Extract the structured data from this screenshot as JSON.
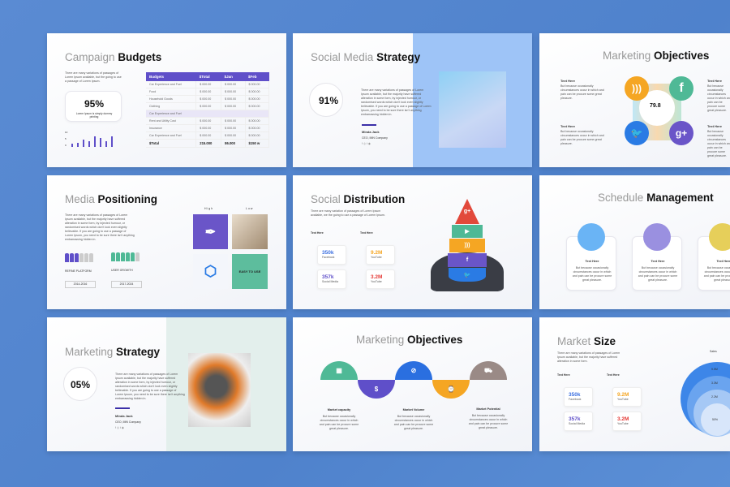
{
  "lorem": {
    "short": "There are many variations of passages of Lorem Ipsum available, but the majority have suffered alteration in some form.",
    "long": "There are many variations of passages of Lorem Ipsum available, but the majority have suffered alteration in some form, by injected humour, or randomised words which don't look even slightly believable. If you are going to use a passage of Lorem Ipsum, you need to be sure there isn't anything embarrassing hidden in.",
    "card": "But because occasionally circumstances occur in which and pain can be procure some great pleasure.",
    "budget": "There are many variations of passages of Lorem Ipsum available, but the going to use a passage of Lorem Ipsum.",
    "dist": "There are many variation of passages of Lorem Ipsum available, we the going to use a passage of Lorem Ipsum."
  },
  "slides": {
    "campaign_budgets": {
      "title_light": "Campaign",
      "title_bold": "Budgets",
      "percent": "95%",
      "percent_caption": "Lorem Ipsum is simply dummy printing",
      "chart_axis": [
        "10",
        "5",
        "0"
      ],
      "chart_values": [
        2,
        3,
        5,
        4,
        7,
        6,
        4,
        7
      ],
      "table": {
        "headers": [
          "Budgets",
          "$Total",
          "$Jan",
          "$Feb"
        ],
        "rows": [
          [
            "Car Experience and Fuel",
            "$ 000.00",
            "$ 000.00",
            "$ 000.00"
          ],
          [
            "Food",
            "$ 000.00",
            "$ 000.00",
            "$ 000.00"
          ],
          [
            "Household Goods",
            "$ 000.00",
            "$ 000.00",
            "$ 000.00"
          ],
          [
            "Clothing",
            "$ 000.00",
            "$ 000.00",
            "$ 000.00"
          ]
        ],
        "section": "Car Experience and Fuel",
        "rows2": [
          [
            "Rent and Utility Cost",
            "$ 000.00",
            "$ 000.00",
            "$ 000.00"
          ],
          [
            "Insurance",
            "$ 000.00",
            "$ 000.00",
            "$ 000.00"
          ],
          [
            "Car Experience and Fuel",
            "$ 000.00",
            "$ 000.00",
            "$ 000.00"
          ]
        ],
        "total": [
          "$Total",
          "215.000",
          "86.000",
          "$150 w"
        ]
      }
    },
    "social_media_strategy": {
      "title_light": "Social Media",
      "title_bold": "Strategy",
      "percent": "91%",
      "name": "Minda Jack",
      "role": "CEO, IMN Company"
    },
    "marketing_objectives_1": {
      "title_light": "Marketing",
      "title_bold": "Objectives",
      "center": "79.8",
      "item_title": "Text Here"
    },
    "media_positioning": {
      "title_light": "Media",
      "title_bold": "Positioning",
      "high": "High",
      "low": "Low",
      "label1": "REFINE PLATFORM",
      "label2": "USER GROWTH",
      "year1": "2014-2016",
      "year2": "2017-2024",
      "tile": "EASY TO USE",
      "people1_active": 3,
      "people2_active": 5,
      "people_total": 6
    },
    "social_distribution": {
      "title_light": "Social",
      "title_bold": "Distribution",
      "col_title": "Text Here",
      "stats": [
        {
          "value": "350k",
          "label": "Facebook",
          "color": "#3b6fe0"
        },
        {
          "value": "357k",
          "label": "Social Media",
          "color": "#5f4fc9"
        },
        {
          "value": "9.2M",
          "label": "YouTube",
          "color": "#f5a623"
        },
        {
          "value": "3.2M",
          "label": "YouTube",
          "color": "#e53935"
        }
      ]
    },
    "schedule_management": {
      "title_light": "Schedule",
      "title_bold": "Management",
      "card_title": "Text Here"
    },
    "marketing_strategy": {
      "title_light": "Marketing",
      "title_bold": "Strategy",
      "percent": "05%",
      "name": "Minda Jack",
      "role": "CEO, IMN Company"
    },
    "marketing_objectives_2": {
      "title_light": "Marketing",
      "title_bold": "Objectives",
      "items": [
        "Market capacity",
        "Market Volume",
        "Market Potential"
      ]
    },
    "market_size": {
      "title_light": "Market",
      "title_bold": "Size",
      "col_title": "Text Here",
      "sales_label": "Sales",
      "rings": [
        "9.5M",
        "3.3M",
        "2.2M",
        "50%"
      ],
      "stats": [
        {
          "value": "350k",
          "label": "Facebook",
          "color": "#3b6fe0"
        },
        {
          "value": "357k",
          "label": "Social Media",
          "color": "#5f4fc9"
        },
        {
          "value": "9.2M",
          "label": "YouTube",
          "color": "#f5a623"
        },
        {
          "value": "3.2M",
          "label": "YouTube",
          "color": "#e53935"
        }
      ]
    }
  },
  "colors": {
    "purple": "#5f4fc9",
    "green": "#4fb996",
    "blue": "#2a6fe0",
    "orange": "#f5a623",
    "red": "#e2493b",
    "gray": "#9a8a86",
    "bg": "#5a8bd3"
  }
}
